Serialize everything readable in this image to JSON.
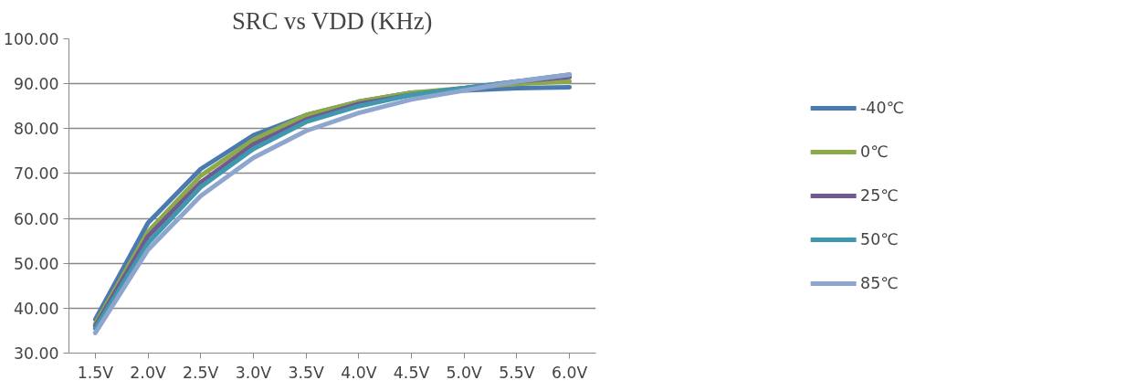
{
  "chart_data": {
    "type": "line",
    "title": "SRC vs VDD (KHz)",
    "categories": [
      "1.5V",
      "2.0V",
      "2.5V",
      "3.0V",
      "3.5V",
      "4.0V",
      "4.5V",
      "5.0V",
      "5.5V",
      "6.0V"
    ],
    "series": [
      {
        "name": "-40℃",
        "color": "#4a7ab0",
        "values": [
          37.5,
          59,
          71,
          78.5,
          83,
          86,
          88,
          88.5,
          89,
          89.2
        ]
      },
      {
        "name": "0℃",
        "color": "#8caa4a",
        "values": [
          36.5,
          57,
          69.5,
          77.5,
          83,
          86,
          88,
          89,
          90,
          90.5
        ]
      },
      {
        "name": "25℃",
        "color": "#715a91",
        "values": [
          36,
          56,
          68,
          76.5,
          82,
          85.5,
          87.5,
          89,
          90.5,
          91.5
        ]
      },
      {
        "name": "50℃",
        "color": "#3f98ae",
        "values": [
          35.5,
          54.5,
          67,
          75.5,
          81.5,
          85,
          87.5,
          89,
          90.5,
          92
        ]
      },
      {
        "name": "85℃",
        "color": "#8ea6cd",
        "values": [
          34.5,
          53,
          65,
          73.5,
          79.5,
          83.5,
          86.5,
          88.5,
          90.5,
          92
        ]
      }
    ],
    "ylim": [
      30,
      100
    ],
    "yticks": [
      {
        "value": 30,
        "label": "30.00"
      },
      {
        "value": 40,
        "label": "40.00"
      },
      {
        "value": 50,
        "label": "50.00"
      },
      {
        "value": 60,
        "label": "60.00"
      },
      {
        "value": 70,
        "label": "70.00"
      },
      {
        "value": 80,
        "label": "80.00"
      },
      {
        "value": 90,
        "label": "90.00"
      },
      {
        "value": 100,
        "label": "100.00"
      }
    ],
    "grid": "y",
    "legend": "right",
    "marker": "none",
    "line_style": "solid"
  }
}
